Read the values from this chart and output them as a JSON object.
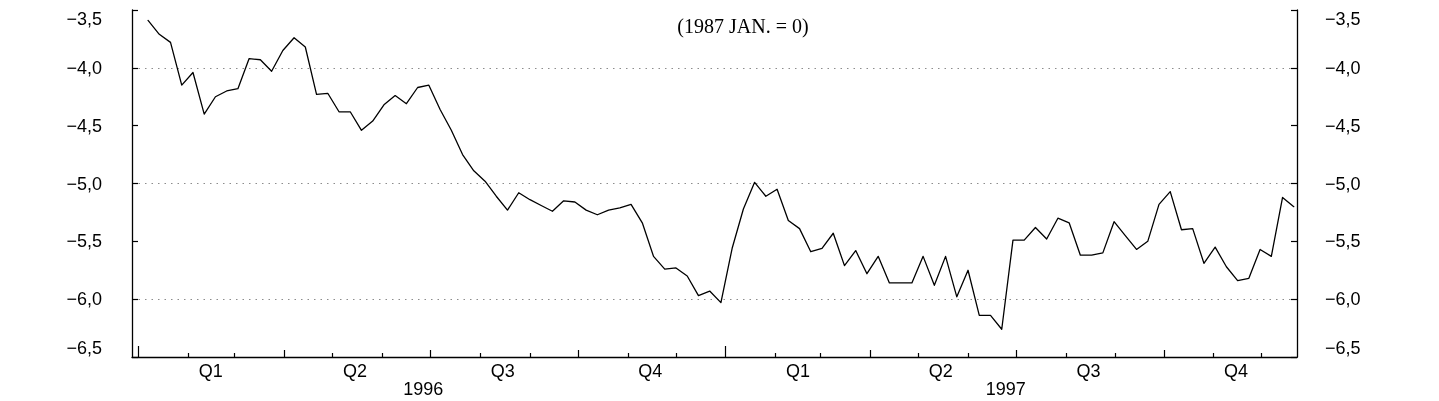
{
  "chart_data": {
    "type": "line",
    "title": "(1987 JAN. = 0)",
    "x": [
      "1996-01-07",
      "1996-01-14",
      "1996-01-21",
      "1996-01-28",
      "1996-02-04",
      "1996-02-11",
      "1996-02-18",
      "1996-02-25",
      "1996-03-03",
      "1996-03-10",
      "1996-03-17",
      "1996-03-24",
      "1996-03-31",
      "1996-04-07",
      "1996-04-14",
      "1996-04-21",
      "1996-04-28",
      "1996-05-05",
      "1996-05-12",
      "1996-05-19",
      "1996-05-26",
      "1996-06-02",
      "1996-06-09",
      "1996-06-16",
      "1996-06-23",
      "1996-06-30",
      "1996-07-07",
      "1996-07-14",
      "1996-07-21",
      "1996-07-28",
      "1996-08-04",
      "1996-08-11",
      "1996-08-18",
      "1996-08-25",
      "1996-09-01",
      "1996-09-08",
      "1996-09-15",
      "1996-09-22",
      "1996-09-29",
      "1996-10-06",
      "1996-10-13",
      "1996-10-20",
      "1996-10-27",
      "1996-11-03",
      "1996-11-10",
      "1996-11-17",
      "1996-11-24",
      "1996-12-01",
      "1996-12-08",
      "1996-12-15",
      "1996-12-22",
      "1996-12-29",
      "1997-01-05",
      "1997-01-12",
      "1997-01-19",
      "1997-01-26",
      "1997-02-02",
      "1997-02-09",
      "1997-02-16",
      "1997-02-23",
      "1997-03-02",
      "1997-03-09",
      "1997-03-16",
      "1997-03-23",
      "1997-03-30",
      "1997-04-06",
      "1997-04-13",
      "1997-04-20",
      "1997-04-27",
      "1997-05-04",
      "1997-05-11",
      "1997-05-18",
      "1997-05-25",
      "1997-06-01",
      "1997-06-08",
      "1997-06-15",
      "1997-06-22",
      "1997-06-29",
      "1997-07-06",
      "1997-07-13",
      "1997-07-20",
      "1997-07-27",
      "1997-08-03",
      "1997-08-10",
      "1997-08-17",
      "1997-08-24",
      "1997-08-31",
      "1997-09-07",
      "1997-09-14",
      "1997-09-21",
      "1997-09-28",
      "1997-10-05",
      "1997-10-12",
      "1997-10-19",
      "1997-10-26",
      "1997-11-02",
      "1997-11-09",
      "1997-11-16",
      "1997-11-23",
      "1997-11-30",
      "1997-12-07",
      "1997-12-14",
      "1997-12-21"
    ],
    "values": [
      -3.59,
      -3.71,
      -3.78,
      -4.15,
      -4.04,
      -4.4,
      -4.25,
      -4.2,
      -4.18,
      -3.92,
      -3.93,
      -4.03,
      -3.85,
      -3.74,
      -3.82,
      -4.23,
      -4.22,
      -4.38,
      -4.38,
      -4.54,
      -4.46,
      -4.32,
      -4.24,
      -4.31,
      -4.17,
      -4.15,
      -4.36,
      -4.54,
      -4.75,
      -4.89,
      -4.98,
      -5.11,
      -5.23,
      -5.08,
      -5.14,
      -5.19,
      -5.24,
      -5.15,
      -5.16,
      -5.23,
      -5.27,
      -5.23,
      -5.21,
      -5.18,
      -5.34,
      -5.63,
      -5.74,
      -5.73,
      -5.8,
      -5.97,
      -5.93,
      -6.03,
      -5.56,
      -5.22,
      -4.99,
      -5.11,
      -5.05,
      -5.32,
      -5.39,
      -5.59,
      -5.56,
      -5.43,
      -5.71,
      -5.58,
      -5.78,
      -5.63,
      -5.86,
      -5.86,
      -5.86,
      -5.63,
      -5.88,
      -5.63,
      -5.98,
      -5.75,
      -6.14,
      -6.14,
      -6.26,
      -5.49,
      -5.49,
      -5.38,
      -5.48,
      -5.3,
      -5.34,
      -5.62,
      -5.62,
      -5.6,
      -5.33,
      -5.45,
      -5.57,
      -5.5,
      -5.18,
      -5.07,
      -5.4,
      -5.39,
      -5.69,
      -5.55,
      -5.72,
      -5.84,
      -5.82,
      -5.57,
      -5.63,
      -5.12,
      -5.2
    ],
    "color": "#000000",
    "xlim": [
      "1995-12-28",
      "1997-12-23"
    ],
    "xticks": [
      {
        "value": "1996-01-01",
        "label": null
      },
      {
        "value": "1996-02-01",
        "label": null
      },
      {
        "value": "1996-02-15",
        "label": "Q1"
      },
      {
        "value": "1996-03-01",
        "label": null
      },
      {
        "value": "1996-04-01",
        "label": null
      },
      {
        "value": "1996-05-01",
        "label": null
      },
      {
        "value": "1996-05-15",
        "label": "Q2"
      },
      {
        "value": "1996-06-01",
        "label": null
      },
      {
        "value": "1996-07-01",
        "label": null
      },
      {
        "value": "1996-08-01",
        "label": null
      },
      {
        "value": "1996-08-15",
        "label": "Q3"
      },
      {
        "value": "1996-09-01",
        "label": null
      },
      {
        "value": "1996-10-01",
        "label": null
      },
      {
        "value": "1996-11-01",
        "label": null
      },
      {
        "value": "1996-11-15",
        "label": "Q4"
      },
      {
        "value": "1996-12-01",
        "label": null
      },
      {
        "value": "1997-01-01",
        "label": null
      },
      {
        "value": "1997-02-01",
        "label": null
      },
      {
        "value": "1997-02-15",
        "label": "Q1"
      },
      {
        "value": "1997-03-01",
        "label": null
      },
      {
        "value": "1997-04-01",
        "label": null
      },
      {
        "value": "1997-05-01",
        "label": null
      },
      {
        "value": "1997-05-15",
        "label": "Q2"
      },
      {
        "value": "1997-06-01",
        "label": null
      },
      {
        "value": "1997-07-01",
        "label": null
      },
      {
        "value": "1997-08-01",
        "label": null
      },
      {
        "value": "1997-08-15",
        "label": "Q3"
      },
      {
        "value": "1997-09-01",
        "label": null
      },
      {
        "value": "1997-10-01",
        "label": null
      },
      {
        "value": "1997-11-01",
        "label": null
      },
      {
        "value": "1997-11-15",
        "label": "Q4"
      },
      {
        "value": "1997-12-01",
        "label": null
      }
    ],
    "annotations": [
      "1996",
      "1997"
    ],
    "ylim": [
      -6.5,
      -3.5
    ],
    "yticks": [
      {
        "value": -6.5,
        "label": "−6,5"
      },
      {
        "value": -6,
        "label": "−6,0"
      },
      {
        "value": -5.5,
        "label": "−5,5"
      },
      {
        "value": -5,
        "label": "−5,0"
      },
      {
        "value": -4.5,
        "label": "−4,5"
      },
      {
        "value": -4,
        "label": "−4,0"
      },
      {
        "value": -3.5,
        "label": "−3,5"
      }
    ],
    "y2lim": [
      -6.5,
      -3.5
    ],
    "y2ticks": [
      {
        "value": -6.5,
        "label": "−6,5"
      },
      {
        "value": -6,
        "label": "−6,0"
      },
      {
        "value": -5.5,
        "label": "−5,5"
      },
      {
        "value": -5,
        "label": "−5,0"
      },
      {
        "value": -4.5,
        "label": "−4,5"
      },
      {
        "value": -4,
        "label": "−4,0"
      },
      {
        "value": -3.5,
        "label": "−3,5"
      }
    ],
    "grid": "y",
    "marker": "none",
    "line_style": "solid"
  }
}
